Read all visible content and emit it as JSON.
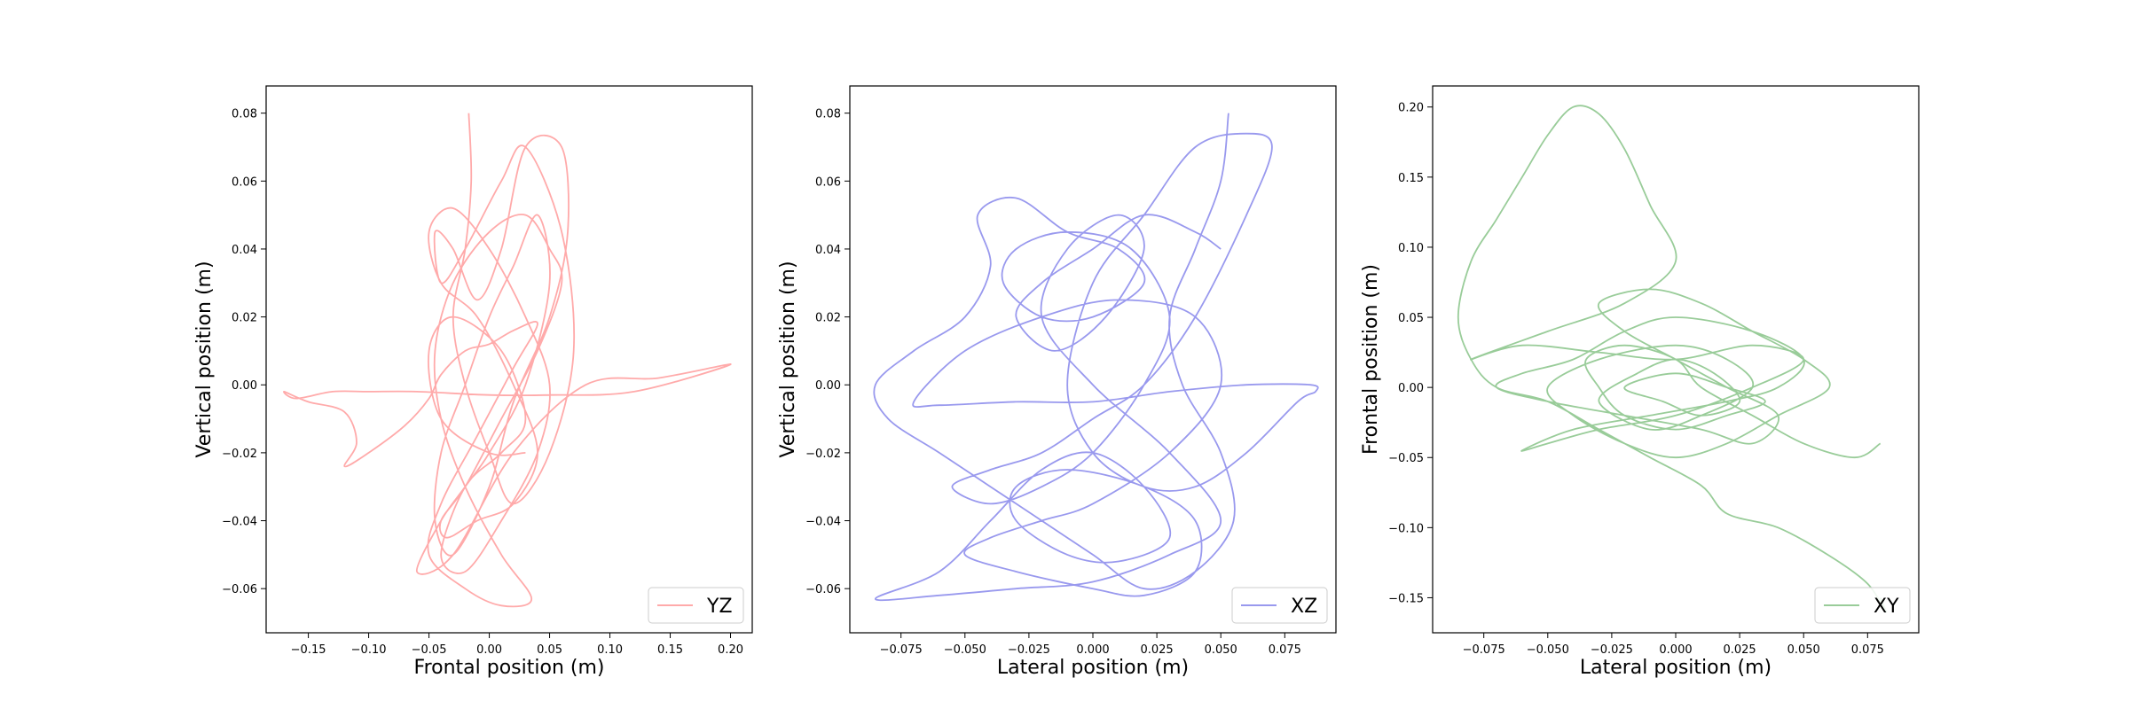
{
  "chart_data": [
    {
      "type": "line",
      "title": "",
      "xlabel": "Frontal position (m)",
      "ylabel": "Vertical position  (m)",
      "xlim": [
        -0.185,
        0.218
      ],
      "ylim": [
        -0.073,
        0.088
      ],
      "xticks": [
        "−0.15",
        "−0.10",
        "−0.05",
        "0.00",
        "0.05",
        "0.10",
        "0.15",
        "0.20"
      ],
      "xtick_values": [
        -0.15,
        -0.1,
        -0.05,
        0.0,
        0.05,
        0.1,
        0.15,
        0.2
      ],
      "yticks": [
        "−0.06",
        "−0.04",
        "−0.02",
        "0.00",
        "0.02",
        "0.04",
        "0.06",
        "0.08"
      ],
      "ytick_values": [
        -0.06,
        -0.04,
        -0.02,
        0.0,
        0.02,
        0.04,
        0.06,
        0.08
      ],
      "legend_position": "lower right",
      "grid": false,
      "series": [
        {
          "name": "YZ",
          "color": "#ffaaaa",
          "x": [
            -0.017,
            -0.015,
            -0.02,
            -0.03,
            -0.02,
            0.0,
            0.02,
            0.05,
            0.07,
            0.06,
            0.03,
            0.01,
            -0.02,
            -0.04,
            -0.045,
            -0.03,
            -0.01,
            0.01,
            0.03,
            0.06,
            0.065,
            0.05,
            0.02,
            0.0,
            -0.03,
            -0.045,
            -0.04,
            -0.02,
            0.0,
            0.02,
            0.04,
            0.05,
            0.03,
            0.0,
            -0.02,
            -0.04,
            -0.06,
            -0.03,
            0.02,
            0.08,
            0.14,
            0.2,
            0.12,
            0.05,
            0.0,
            -0.06,
            -0.1,
            -0.13,
            -0.16,
            -0.17,
            -0.15,
            -0.12,
            -0.11,
            -0.12,
            -0.1,
            -0.07,
            -0.05,
            -0.04,
            -0.02,
            0.0,
            0.02,
            0.04,
            0.02,
            -0.01,
            -0.04,
            -0.05,
            -0.02,
            0.01,
            0.035,
            0.01,
            -0.02,
            -0.04,
            -0.045,
            -0.03,
            0.0,
            0.03,
            0.05,
            0.06,
            0.04,
            0.01,
            -0.02,
            -0.04,
            -0.035,
            -0.01,
            0.02,
            0.04,
            0.02,
            -0.01,
            -0.04,
            -0.05,
            -0.03,
            0.0,
            0.03,
            0.05,
            0.04,
            0.01,
            -0.02,
            -0.04,
            -0.02,
            0.01,
            0.03,
            0.01,
            -0.03,
            -0.05,
            -0.04,
            0.0,
            0.03
          ],
          "y": [
            0.08,
            0.06,
            0.04,
            0.02,
            0.0,
            -0.02,
            -0.035,
            -0.02,
            0.01,
            0.045,
            0.07,
            0.06,
            0.04,
            0.03,
            0.045,
            0.04,
            0.025,
            0.04,
            0.07,
            0.07,
            0.045,
            0.02,
            -0.005,
            -0.03,
            -0.05,
            -0.04,
            -0.02,
            0.0,
            0.02,
            0.035,
            0.05,
            0.03,
            0.0,
            -0.02,
            -0.03,
            -0.04,
            -0.055,
            -0.05,
            -0.02,
            0.0,
            0.002,
            0.006,
            -0.002,
            -0.003,
            -0.003,
            -0.002,
            -0.002,
            -0.002,
            -0.004,
            -0.002,
            -0.005,
            -0.008,
            -0.017,
            -0.024,
            -0.02,
            -0.012,
            -0.004,
            0.003,
            0.01,
            0.012,
            0.016,
            0.018,
            0.005,
            -0.015,
            -0.035,
            -0.05,
            -0.06,
            -0.065,
            -0.063,
            -0.05,
            -0.03,
            -0.01,
            0.01,
            0.03,
            0.045,
            0.05,
            0.04,
            0.03,
            0.01,
            -0.01,
            -0.03,
            -0.04,
            -0.045,
            -0.04,
            -0.035,
            -0.02,
            0.0,
            0.02,
            0.03,
            0.045,
            0.052,
            0.04,
            0.02,
            0.0,
            -0.02,
            -0.04,
            -0.055,
            -0.05,
            -0.03,
            -0.02,
            -0.01,
            0.01,
            0.02,
            0.01,
            -0.01,
            -0.02,
            -0.02
          ]
        }
      ]
    },
    {
      "type": "line",
      "title": "",
      "xlabel": "Lateral position (m)",
      "ylabel": "Vertical position (m)",
      "xlim": [
        -0.095,
        0.095
      ],
      "ylim": [
        -0.073,
        0.088
      ],
      "xticks": [
        "−0.075",
        "−0.050",
        "−0.025",
        "0.000",
        "0.025",
        "0.050",
        "0.075"
      ],
      "xtick_values": [
        -0.075,
        -0.05,
        -0.025,
        0.0,
        0.025,
        0.05,
        0.075
      ],
      "yticks": [
        "−0.06",
        "−0.04",
        "−0.02",
        "0.00",
        "0.02",
        "0.04",
        "0.06",
        "0.08"
      ],
      "ytick_values": [
        -0.06,
        -0.04,
        -0.02,
        0.0,
        0.02,
        0.04,
        0.06,
        0.08
      ],
      "legend_position": "lower right",
      "grid": false,
      "series": [
        {
          "name": "XZ",
          "color": "#9999ee",
          "x": [
            0.053,
            0.05,
            0.04,
            0.03,
            0.035,
            0.05,
            0.055,
            0.04,
            0.02,
            0.0,
            -0.02,
            -0.04,
            -0.06,
            -0.08,
            -0.085,
            -0.07,
            -0.05,
            -0.04,
            -0.045,
            -0.03,
            -0.01,
            0.01,
            0.02,
            0.0,
            -0.02,
            -0.035,
            -0.03,
            -0.01,
            0.015,
            0.03,
            0.02,
            0.0,
            -0.02,
            -0.04,
            -0.055,
            -0.04,
            -0.02,
            0.0,
            0.02,
            0.04,
            0.06,
            0.07,
            0.06,
            0.04,
            0.02,
            0.0,
            -0.01,
            0.0,
            0.02,
            0.04,
            0.06,
            0.08,
            0.087,
            0.085,
            0.06,
            0.03,
            0.0,
            -0.03,
            -0.06,
            -0.07,
            -0.05,
            -0.02,
            0.01,
            0.04,
            0.05,
            0.03,
            0.0,
            -0.02,
            -0.04,
            -0.05,
            -0.03,
            0.0,
            0.02,
            0.04,
            0.04,
            0.02,
            -0.01,
            -0.03,
            -0.03,
            -0.01,
            0.01,
            0.03,
            0.02,
            0.0,
            -0.02,
            -0.04,
            -0.06,
            -0.085,
            -0.06,
            -0.03,
            0.0,
            0.03,
            0.05,
            0.03,
            0.0,
            -0.02,
            -0.01,
            0.01,
            0.02,
            0.005,
            -0.015,
            -0.03,
            -0.02,
            0.0,
            0.02,
            0.04,
            0.05
          ],
          "y": [
            0.08,
            0.06,
            0.04,
            0.02,
            0.0,
            -0.02,
            -0.04,
            -0.055,
            -0.06,
            -0.05,
            -0.04,
            -0.03,
            -0.02,
            -0.01,
            0.0,
            0.01,
            0.02,
            0.035,
            0.05,
            0.055,
            0.045,
            0.04,
            0.03,
            0.02,
            0.02,
            0.03,
            0.04,
            0.045,
            0.04,
            0.02,
            0.0,
            -0.02,
            -0.03,
            -0.035,
            -0.03,
            -0.025,
            -0.02,
            -0.01,
            0.0,
            0.02,
            0.05,
            0.07,
            0.074,
            0.07,
            0.05,
            0.03,
            0.0,
            -0.02,
            -0.03,
            -0.03,
            -0.02,
            -0.005,
            -0.002,
            0.0,
            0.0,
            -0.002,
            -0.005,
            -0.005,
            -0.006,
            -0.005,
            0.01,
            0.02,
            0.025,
            0.02,
            0.0,
            -0.02,
            -0.035,
            -0.04,
            -0.045,
            -0.05,
            -0.055,
            -0.06,
            -0.062,
            -0.055,
            -0.04,
            -0.03,
            -0.025,
            -0.03,
            -0.04,
            -0.05,
            -0.052,
            -0.045,
            -0.03,
            -0.02,
            -0.025,
            -0.04,
            -0.055,
            -0.063,
            -0.062,
            -0.06,
            -0.058,
            -0.05,
            -0.04,
            -0.02,
            0.0,
            0.02,
            0.04,
            0.05,
            0.04,
            0.02,
            0.01,
            0.02,
            0.03,
            0.04,
            0.05,
            0.045,
            0.04
          ]
        }
      ]
    },
    {
      "type": "line",
      "title": "",
      "xlabel": "Lateral position (m)",
      "ylabel": "Frontal position (m)",
      "xlim": [
        -0.095,
        0.095
      ],
      "ylim": [
        -0.175,
        0.215
      ],
      "xticks": [
        "−0.075",
        "−0.050",
        "−0.025",
        "0.000",
        "0.025",
        "0.050",
        "0.075"
      ],
      "xtick_values": [
        -0.075,
        -0.05,
        -0.025,
        0.0,
        0.025,
        0.05,
        0.075
      ],
      "yticks": [
        "−0.15",
        "−0.10",
        "−0.05",
        "0.00",
        "0.05",
        "0.10",
        "0.15",
        "0.20"
      ],
      "ytick_values": [
        -0.15,
        -0.1,
        -0.05,
        0.0,
        0.05,
        0.1,
        0.15,
        0.2
      ],
      "legend_position": "lower right",
      "grid": false,
      "series": [
        {
          "name": "XY",
          "color": "#99cc99",
          "x": [
            0.08,
            0.082,
            0.075,
            0.06,
            0.04,
            0.02,
            0.01,
            -0.01,
            -0.03,
            -0.05,
            -0.07,
            -0.08,
            -0.085,
            -0.08,
            -0.07,
            -0.06,
            -0.05,
            -0.04,
            -0.03,
            -0.02,
            -0.01,
            0.0,
            -0.02,
            -0.05,
            -0.08,
            -0.06,
            -0.03,
            0.0,
            0.03,
            0.05,
            0.03,
            0.0,
            -0.03,
            -0.05,
            -0.06,
            -0.04,
            -0.01,
            0.02,
            0.04,
            0.05,
            0.03,
            0.0,
            -0.02,
            -0.04,
            -0.06,
            -0.07,
            -0.05,
            -0.02,
            0.01,
            0.03,
            0.04,
            0.02,
            0.0,
            -0.02,
            -0.03,
            -0.01,
            0.01,
            0.03,
            0.05,
            0.06,
            0.04,
            0.02,
            0.0,
            -0.02,
            -0.04,
            -0.05,
            -0.03,
            0.0,
            0.02,
            0.03,
            0.01,
            -0.01,
            -0.03,
            -0.015,
            0.0,
            0.015,
            0.025,
            0.01,
            -0.005,
            -0.02,
            0.0,
            0.02,
            0.035,
            0.02,
            0.0,
            -0.02,
            -0.03,
            -0.035,
            -0.02,
            0.0,
            0.01,
            0.03,
            0.05,
            0.07,
            0.08
          ],
          "y": [
            -0.15,
            -0.16,
            -0.14,
            -0.12,
            -0.1,
            -0.09,
            -0.07,
            -0.05,
            -0.03,
            -0.01,
            0.0,
            0.02,
            0.05,
            0.09,
            0.12,
            0.15,
            0.18,
            0.2,
            0.195,
            0.17,
            0.13,
            0.09,
            0.06,
            0.04,
            0.02,
            0.03,
            0.025,
            0.02,
            0.03,
            0.02,
            0.0,
            -0.02,
            -0.03,
            -0.04,
            -0.045,
            -0.03,
            -0.02,
            -0.01,
            0.0,
            0.02,
            0.04,
            0.05,
            0.04,
            0.02,
            0.01,
            0.0,
            -0.01,
            -0.02,
            -0.03,
            -0.04,
            -0.02,
            0.0,
            0.02,
            0.04,
            0.06,
            0.07,
            0.06,
            0.04,
            0.02,
            0.0,
            -0.02,
            -0.04,
            -0.05,
            -0.04,
            -0.02,
            0.0,
            0.02,
            0.03,
            0.02,
            0.0,
            -0.02,
            -0.03,
            -0.01,
            0.01,
            0.02,
            0.01,
            -0.01,
            -0.02,
            -0.01,
            0.0,
            0.01,
            0.0,
            -0.01,
            -0.02,
            -0.03,
            -0.02,
            0.0,
            0.02,
            0.03,
            0.02,
            0.0,
            -0.02,
            -0.04,
            -0.05,
            -0.04
          ]
        }
      ]
    }
  ]
}
